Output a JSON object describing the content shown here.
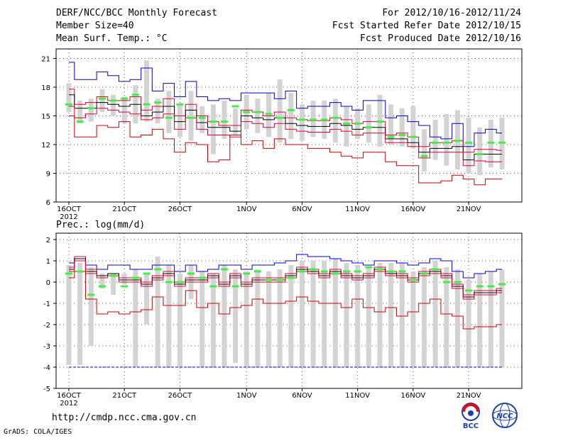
{
  "header": {
    "title": "DERF/NCC/BCC Monthly Forecast",
    "member_size": "Member Size=40",
    "variable_1": "Mean Surf. Temp.: °C",
    "period": "For 2012/10/16-2012/11/24",
    "refer_date": "Fcst Started Refer Date 2012/10/15",
    "produced_date": "Fcst Produced Date 2012/10/16"
  },
  "footer": {
    "url": "http://cmdp.ncc.cma.gov.cn",
    "grads": "GrADS: COLA/IGES",
    "logo_bcc": "BCC",
    "logo_ncc": "NCC"
  },
  "colors": {
    "max_line": "#0000cc",
    "min_line": "#cc0000",
    "spread_line": "#e0002a",
    "mean_line": "#000000",
    "obs_mark": "#44ee44",
    "box": "#d3d3d3",
    "grid": "#555555"
  },
  "chart_data": [
    {
      "type": "line",
      "title": "Mean Surf. Temp.: °C",
      "xlabel": "",
      "ylabel": "°C",
      "ylim": [
        6,
        22
      ],
      "yticks": [
        6,
        9,
        12,
        15,
        18,
        21
      ],
      "day_index": [
        0,
        1,
        2,
        3,
        4,
        5,
        6,
        7,
        8,
        9,
        10,
        11,
        12,
        13,
        14,
        15,
        16,
        17,
        18,
        19,
        20,
        21,
        22,
        23,
        24,
        25,
        26,
        27,
        28,
        29,
        30,
        31,
        32,
        33,
        34,
        35,
        36,
        37,
        38,
        39
      ],
      "xticks": [
        {
          "day": 0,
          "label": "16OCT",
          "sub": "2012"
        },
        {
          "day": 5,
          "label": "21OCT"
        },
        {
          "day": 10,
          "label": "26OCT"
        },
        {
          "day": 16,
          "label": "1NOV"
        },
        {
          "day": 21,
          "label": "6NOV"
        },
        {
          "day": 26,
          "label": "11NOV"
        },
        {
          "day": 31,
          "label": "16NOV"
        },
        {
          "day": 36,
          "label": "21NOV"
        }
      ],
      "series": [
        {
          "name": "max",
          "values": [
            20.6,
            18.8,
            18.8,
            19.6,
            19.2,
            18.6,
            18.8,
            20.0,
            17.6,
            18.4,
            17.0,
            18.6,
            17.0,
            16.6,
            16.8,
            16.6,
            17.4,
            17.4,
            17.4,
            16.8,
            17.6,
            15.8,
            16.0,
            16.0,
            16.4,
            16.0,
            15.6,
            16.6,
            16.6,
            14.8,
            15.0,
            14.4,
            14.0,
            12.8,
            12.6,
            14.2,
            11.8,
            13.2,
            13.6,
            13.2
          ]
        },
        {
          "name": "spread_high",
          "values": [
            17.8,
            16.2,
            16.4,
            17.0,
            16.6,
            16.6,
            17.0,
            15.6,
            16.0,
            16.8,
            15.0,
            16.2,
            15.0,
            14.4,
            14.0,
            14.0,
            15.6,
            15.4,
            15.0,
            15.4,
            14.8,
            14.6,
            14.5,
            14.5,
            14.8,
            14.6,
            14.2,
            14.4,
            14.4,
            13.0,
            13.2,
            12.8,
            11.8,
            12.2,
            12.2,
            12.4,
            11.2,
            11.5,
            11.5,
            11.4
          ]
        },
        {
          "name": "ens_mean",
          "values": [
            17.2,
            15.8,
            15.8,
            16.4,
            16.2,
            16.0,
            16.2,
            15.0,
            15.4,
            16.0,
            14.4,
            15.6,
            14.3,
            13.8,
            13.8,
            13.4,
            15.0,
            14.8,
            14.6,
            14.8,
            14.2,
            14.0,
            13.9,
            13.9,
            14.2,
            14.0,
            13.6,
            13.8,
            13.8,
            12.6,
            12.6,
            12.2,
            11.2,
            11.6,
            11.6,
            11.8,
            10.4,
            11.0,
            11.0,
            11.0
          ]
        },
        {
          "name": "spread_low",
          "values": [
            16.0,
            14.8,
            15.2,
            15.8,
            15.6,
            15.4,
            15.2,
            14.6,
            14.8,
            15.2,
            13.6,
            14.8,
            13.6,
            13.0,
            13.0,
            12.8,
            14.4,
            14.2,
            13.8,
            14.2,
            13.6,
            13.4,
            13.3,
            13.3,
            13.6,
            13.4,
            13.0,
            13.2,
            13.2,
            12.2,
            12.2,
            11.8,
            10.6,
            11.2,
            11.2,
            11.2,
            9.8,
            10.3,
            10.2,
            10.2
          ]
        },
        {
          "name": "min",
          "values": [
            15.0,
            12.8,
            12.8,
            14.0,
            13.8,
            14.4,
            12.8,
            13.0,
            13.6,
            12.6,
            11.2,
            12.2,
            12.0,
            10.2,
            10.4,
            13.0,
            12.0,
            12.4,
            11.6,
            12.6,
            12.0,
            12.0,
            11.6,
            11.6,
            11.2,
            10.8,
            10.6,
            11.2,
            11.2,
            10.2,
            9.8,
            9.8,
            8.0,
            8.0,
            8.2,
            8.8,
            8.4,
            7.8,
            8.4,
            8.4
          ]
        }
      ],
      "boxes": {
        "low": [
          15.4,
          14.2,
          14.4,
          15.4,
          15.0,
          14.2,
          14.2,
          14.4,
          14.2,
          13.2,
          12.8,
          12.4,
          13.2,
          11.0,
          12.6,
          13.0,
          13.6,
          13.2,
          12.8,
          12.2,
          12.6,
          12.4,
          12.8,
          12.6,
          12.2,
          11.8,
          12.6,
          12.2,
          11.8,
          12.0,
          11.8,
          11.6,
          9.2,
          10.4,
          9.8,
          9.4,
          9.0,
          8.8,
          9.6,
          9.4
        ],
        "high": [
          18.4,
          16.6,
          16.8,
          17.8,
          17.2,
          17.0,
          18.2,
          20.8,
          16.8,
          17.6,
          16.2,
          17.6,
          16.0,
          16.2,
          16.6,
          15.8,
          17.2,
          16.8,
          17.4,
          18.8,
          17.4,
          16.2,
          16.6,
          16.6,
          16.8,
          16.0,
          15.8,
          16.2,
          17.2,
          16.2,
          15.8,
          16.0,
          13.6,
          14.6,
          15.2,
          15.6,
          14.8,
          13.8,
          14.6,
          14.8
        ]
      },
      "observed": [
        16.2,
        14.4,
        15.8,
        16.8,
        16.6,
        16.8,
        17.2,
        16.2,
        16.4,
        14.8,
        16.2,
        14.8,
        14.8,
        14.4,
        14.4,
        16.0,
        15.4,
        15.4,
        15.2,
        14.8,
        15.6,
        14.6,
        14.6,
        14.6,
        14.8,
        14.2,
        14.2,
        13.8,
        14.4,
        12.8,
        13.0,
        12.8,
        10.8,
        12.2,
        12.2,
        12.4,
        12.2,
        11.0,
        12.2,
        12.2
      ]
    },
    {
      "type": "line",
      "title": "Prec.: log(mm/d)",
      "xlabel": "",
      "ylabel": "log(mm/d)",
      "ylim": [
        -5,
        2.3
      ],
      "yticks": [
        -5,
        -4,
        -3,
        -2,
        -1,
        0,
        1,
        2
      ],
      "xticks": [
        {
          "day": 0,
          "label": "16OCT",
          "sub": "2012"
        },
        {
          "day": 5,
          "label": "21OCT"
        },
        {
          "day": 10,
          "label": "26OCT"
        },
        {
          "day": 16,
          "label": "1NOV"
        },
        {
          "day": 21,
          "label": "6NOV"
        },
        {
          "day": 26,
          "label": "11NOV"
        },
        {
          "day": 31,
          "label": "16NOV"
        },
        {
          "day": 36,
          "label": "21NOV"
        }
      ],
      "series": [
        {
          "name": "max",
          "values": [
            0.9,
            1.1,
            0.8,
            0.6,
            0.8,
            0.8,
            0.6,
            0.6,
            0.8,
            0.8,
            0.5,
            0.8,
            0.5,
            0.6,
            0.8,
            0.8,
            0.6,
            0.8,
            0.8,
            0.9,
            1.0,
            1.3,
            1.2,
            1.2,
            1.1,
            1.0,
            0.9,
            0.8,
            1.0,
            1.0,
            0.9,
            0.8,
            0.9,
            1.1,
            1.0,
            0.5,
            0.2,
            0.4,
            0.5,
            0.6
          ]
        },
        {
          "name": "spread_high",
          "values": [
            0.7,
            1.2,
            0.6,
            0.3,
            0.4,
            0.2,
            0.2,
            0.0,
            0.3,
            0.5,
            0.0,
            0.2,
            0.2,
            0.4,
            0.0,
            0.4,
            0.0,
            0.2,
            0.2,
            0.2,
            0.4,
            0.7,
            0.6,
            0.4,
            0.6,
            0.4,
            0.3,
            0.4,
            0.7,
            0.5,
            0.4,
            0.2,
            0.5,
            0.6,
            0.4,
            -0.1,
            -0.6,
            -0.4,
            -0.4,
            -0.3
          ]
        },
        {
          "name": "ens_mean",
          "values": [
            0.6,
            1.1,
            0.5,
            0.3,
            0.4,
            0.1,
            0.1,
            -0.1,
            0.2,
            0.4,
            -0.1,
            0.1,
            0.1,
            0.3,
            -0.1,
            0.3,
            -0.1,
            0.1,
            0.1,
            0.1,
            0.3,
            0.6,
            0.5,
            0.3,
            0.5,
            0.3,
            0.2,
            0.3,
            0.6,
            0.4,
            0.3,
            0.1,
            0.4,
            0.5,
            0.3,
            -0.2,
            -0.7,
            -0.5,
            -0.5,
            -0.4
          ]
        },
        {
          "name": "spread_low",
          "values": [
            0.5,
            1.0,
            0.4,
            0.2,
            0.3,
            0.0,
            0.0,
            -0.2,
            0.1,
            0.3,
            -0.2,
            0.0,
            0.0,
            0.2,
            -0.2,
            0.2,
            -0.2,
            0.0,
            0.0,
            0.0,
            0.2,
            0.5,
            0.4,
            0.2,
            0.4,
            0.2,
            0.1,
            0.2,
            0.5,
            0.3,
            0.2,
            0.0,
            0.3,
            0.4,
            0.2,
            -0.3,
            -0.8,
            -0.6,
            -0.6,
            -0.5
          ]
        },
        {
          "name": "min",
          "values": [
            0.2,
            0.5,
            -0.8,
            -1.5,
            -1.4,
            -1.5,
            -1.4,
            -1.3,
            -0.7,
            -1.1,
            -1.1,
            -0.4,
            -1.2,
            -1.0,
            -1.5,
            -1.2,
            -1.1,
            -0.8,
            -1.0,
            -1.0,
            -0.9,
            -0.7,
            -0.9,
            -1.0,
            -1.0,
            -1.2,
            -0.8,
            -1.2,
            -1.4,
            -1.2,
            -1.6,
            -1.4,
            -1.0,
            -0.8,
            -1.5,
            -1.6,
            -2.2,
            -2.1,
            -2.1,
            -2.0
          ]
        }
      ],
      "boxes": {
        "low": [
          -3.9,
          -3.9,
          -3.0,
          -0.3,
          -0.6,
          -0.1,
          -4.0,
          -2.0,
          -4.0,
          -4.0,
          -4.0,
          -0.8,
          -4.0,
          -4.0,
          -4.0,
          -3.8,
          -4.0,
          -4.0,
          -4.0,
          -4.0,
          -4.0,
          -4.0,
          -4.0,
          -4.0,
          -4.0,
          -4.0,
          -4.0,
          -4.0,
          -4.0,
          -4.0,
          -4.0,
          -4.0,
          -4.0,
          -4.0,
          -4.0,
          -4.0,
          -4.0,
          -4.0,
          -4.0,
          -4.0
        ],
        "high": [
          0.8,
          0.9,
          0.7,
          0.4,
          0.4,
          0.4,
          0.6,
          0.4,
          1.2,
          0.8,
          0.4,
          0.8,
          0.5,
          0.4,
          0.8,
          0.6,
          0.5,
          0.6,
          0.5,
          0.6,
          0.8,
          1.0,
          1.0,
          1.0,
          1.1,
          0.9,
          0.8,
          0.7,
          0.9,
          0.9,
          0.9,
          0.5,
          0.7,
          1.0,
          0.7,
          0.6,
          0.1,
          0.4,
          0.5,
          0.6
        ]
      },
      "observed": [
        0.4,
        0.5,
        -0.6,
        -0.2,
        0.3,
        -0.2,
        0.2,
        0.4,
        0.6,
        0.0,
        0.0,
        0.4,
        0.2,
        -0.2,
        0.6,
        -0.2,
        0.4,
        0.5,
        0.1,
        0.1,
        0.2,
        0.5,
        0.6,
        0.5,
        0.4,
        0.5,
        0.5,
        0.7,
        0.6,
        0.5,
        0.5,
        0.1,
        0.4,
        0.6,
        0.0,
        0.0,
        -0.4,
        -0.2,
        -0.2,
        -0.1
      ],
      "reference_line": -4
    }
  ]
}
